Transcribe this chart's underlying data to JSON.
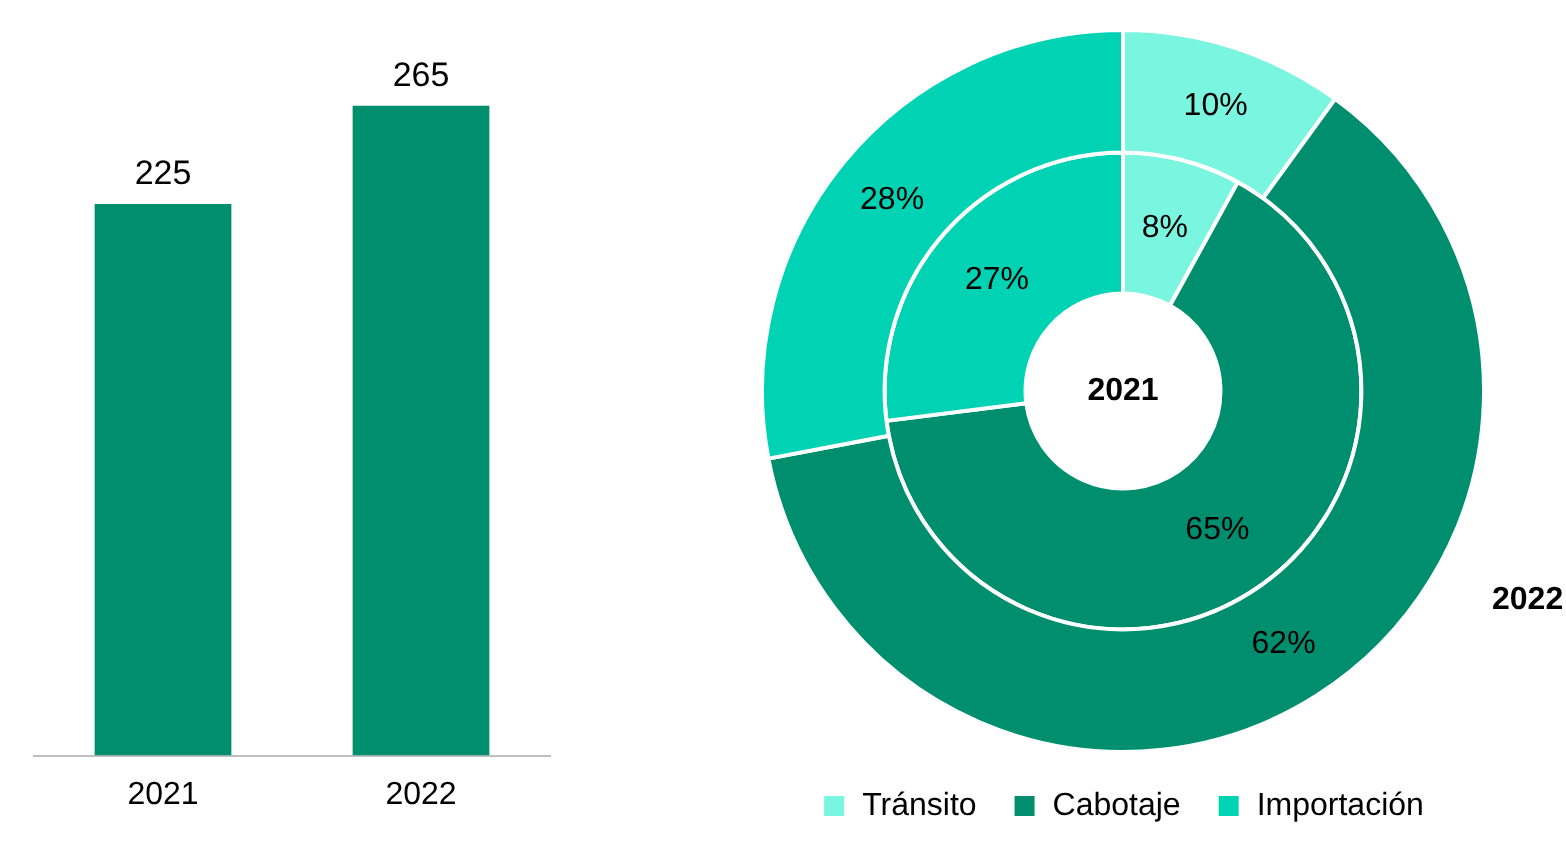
{
  "chart_data": [
    {
      "type": "bar",
      "categories": [
        "2021",
        "2022"
      ],
      "values": [
        225,
        265
      ],
      "color": "#008f6e",
      "data_labels": true,
      "grid": false,
      "legend": false
    },
    {
      "type": "donut",
      "categories": [
        "Tránsito",
        "Cabotaje",
        "Importación"
      ],
      "colors": [
        "#7af5e0",
        "#008f6e",
        "#00d3b4"
      ],
      "legend": "bottom",
      "series": [
        {
          "name": "2021",
          "values": [
            8,
            65,
            27
          ],
          "value_labels": [
            "8%",
            "65%",
            "27%"
          ]
        },
        {
          "name": "2022",
          "values": [
            10,
            62,
            28
          ],
          "value_labels": [
            "10%",
            "62%",
            "28%"
          ]
        }
      ]
    }
  ]
}
